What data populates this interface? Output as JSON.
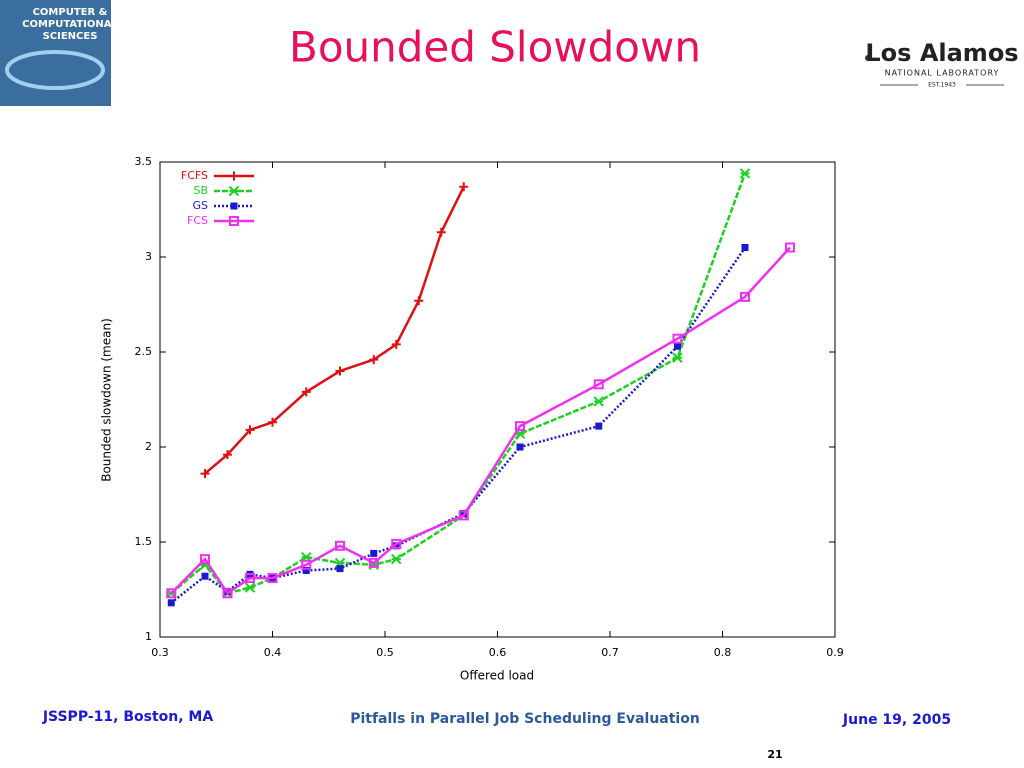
{
  "header": {
    "title": "Bounded Slowdown",
    "left_logo": {
      "line1": "COMPUTER &",
      "line2": "COMPUTATIONAL",
      "line3": "SCIENCES"
    },
    "right_logo": {
      "name": "Los Alamos",
      "sub": "NATIONAL LABORATORY",
      "est": "EST.1943"
    }
  },
  "footer": {
    "left": "JSSPP-11, Boston, MA",
    "center": "Pitfalls in Parallel Job Scheduling Evaluation",
    "right": "June 19, 2005",
    "page": "21"
  },
  "chart_data": {
    "type": "line",
    "x_label": "Offered load",
    "y_label": "Bounded slowdown (mean)",
    "xlim": [
      0.3,
      0.9
    ],
    "xticks": [
      0.3,
      0.4,
      0.5,
      0.6,
      0.7,
      0.8,
      0.9
    ],
    "ylim": [
      1,
      3.5
    ],
    "yticks": [
      1,
      1.5,
      2,
      2.5,
      3,
      3.5
    ],
    "legend": "upper left",
    "series": [
      {
        "name": "FCFS",
        "color": "#e01010",
        "marker": "plus",
        "dash": "solid",
        "x": [
          0.34,
          0.36,
          0.38,
          0.4,
          0.43,
          0.46,
          0.49,
          0.51,
          0.53,
          0.55,
          0.57
        ],
        "values": [
          1.86,
          1.96,
          2.09,
          2.13,
          2.29,
          2.4,
          2.46,
          2.54,
          2.77,
          3.13,
          3.37
        ]
      },
      {
        "name": "SB",
        "color": "#20d020",
        "marker": "cross",
        "dash": "dashed",
        "x": [
          0.31,
          0.34,
          0.36,
          0.38,
          0.4,
          0.43,
          0.46,
          0.49,
          0.51,
          0.57,
          0.62,
          0.69,
          0.76,
          0.82
        ],
        "values": [
          1.23,
          1.38,
          1.23,
          1.26,
          1.31,
          1.42,
          1.39,
          1.38,
          1.41,
          1.64,
          2.07,
          2.24,
          2.47,
          3.44
        ]
      },
      {
        "name": "GS",
        "color": "#1a1ad0",
        "marker": "square",
        "dash": "dotted",
        "x": [
          0.31,
          0.34,
          0.36,
          0.38,
          0.4,
          0.43,
          0.46,
          0.49,
          0.51,
          0.57,
          0.62,
          0.69,
          0.76,
          0.82
        ],
        "values": [
          1.18,
          1.32,
          1.24,
          1.33,
          1.31,
          1.35,
          1.36,
          1.44,
          1.48,
          1.65,
          2.0,
          2.11,
          2.53,
          3.05
        ]
      },
      {
        "name": "FCS",
        "color": "#f030f0",
        "marker": "open-square",
        "dash": "solid",
        "x": [
          0.31,
          0.34,
          0.36,
          0.38,
          0.4,
          0.43,
          0.46,
          0.49,
          0.51,
          0.57,
          0.62,
          0.69,
          0.76,
          0.82,
          0.86
        ],
        "values": [
          1.23,
          1.41,
          1.23,
          1.31,
          1.31,
          1.38,
          1.48,
          1.39,
          1.49,
          1.64,
          2.11,
          2.33,
          2.57,
          2.79,
          3.05
        ]
      }
    ]
  }
}
